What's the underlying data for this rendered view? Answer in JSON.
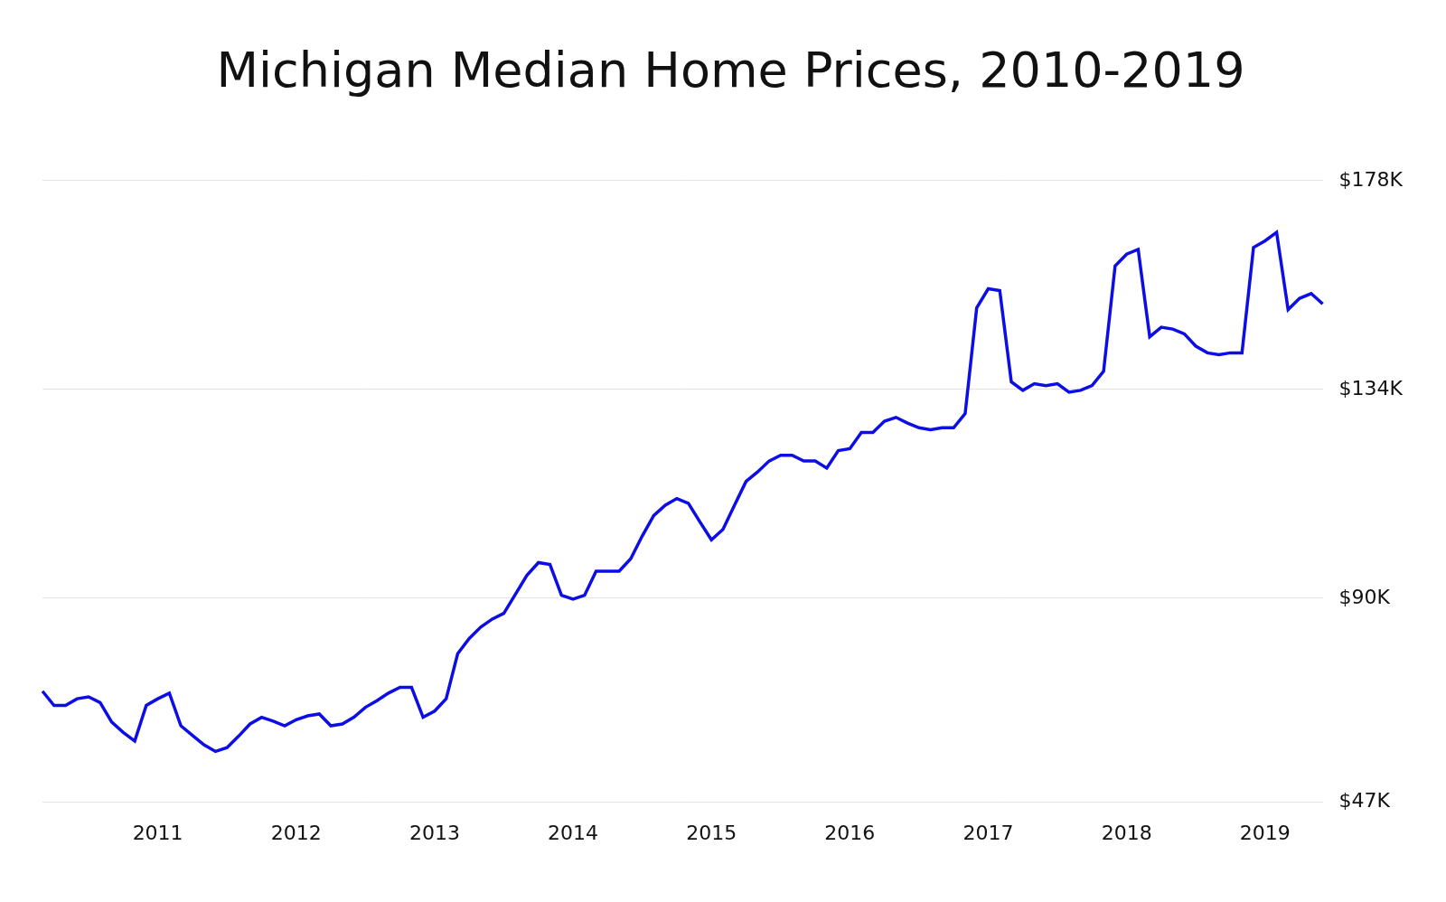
{
  "chart_data": {
    "type": "line",
    "title": "Michigan Median Home Prices, 2010-2019",
    "categories": [
      null,
      null,
      null,
      null,
      null,
      null,
      null,
      null,
      null,
      null,
      "2011",
      null,
      null,
      null,
      null,
      null,
      null,
      null,
      null,
      null,
      null,
      null,
      "2012",
      null,
      null,
      null,
      null,
      null,
      null,
      null,
      null,
      null,
      null,
      null,
      "2013",
      null,
      null,
      null,
      null,
      null,
      null,
      null,
      null,
      null,
      null,
      null,
      "2014",
      null,
      null,
      null,
      null,
      null,
      null,
      null,
      null,
      null,
      null,
      null,
      "2015",
      null,
      null,
      null,
      null,
      null,
      null,
      null,
      null,
      null,
      null,
      null,
      "2016",
      null,
      null,
      null,
      null,
      null,
      null,
      null,
      null,
      null,
      null,
      null,
      "2017",
      null,
      null,
      null,
      null,
      null,
      null,
      null,
      null,
      null,
      null,
      null,
      "2018",
      null,
      null,
      null,
      null,
      null,
      null,
      null,
      null,
      null,
      null,
      null,
      "2019",
      null,
      null,
      null,
      null,
      null
    ],
    "values": [
      70.4,
      67.4,
      67.4,
      68.8,
      69.2,
      68.0,
      63.9,
      61.7,
      59.9,
      67.4,
      68.8,
      70.0,
      63.1,
      61.1,
      59.1,
      57.7,
      58.5,
      60.9,
      63.5,
      64.9,
      64.1,
      63.1,
      64.4,
      65.2,
      65.6,
      63.1,
      63.5,
      64.9,
      67.0,
      68.4,
      70.0,
      71.2,
      71.2,
      64.9,
      66.2,
      68.8,
      78.3,
      81.5,
      83.9,
      85.6,
      86.8,
      90.8,
      94.8,
      97.5,
      97.1,
      90.6,
      89.8,
      90.6,
      95.7,
      95.7,
      95.7,
      98.3,
      103.1,
      107.4,
      109.6,
      111.0,
      110.0,
      106.1,
      102.3,
      104.5,
      109.6,
      114.6,
      116.6,
      118.9,
      120.1,
      120.1,
      118.9,
      118.9,
      117.4,
      121.1,
      121.5,
      124.9,
      124.9,
      127.3,
      128.1,
      126.9,
      125.9,
      125.5,
      125.9,
      125.9,
      128.9,
      151.2,
      155.2,
      154.8,
      135.6,
      133.8,
      135.2,
      134.8,
      135.2,
      133.4,
      133.8,
      134.8,
      137.8,
      160.0,
      162.5,
      163.5,
      145.1,
      147.1,
      146.7,
      145.7,
      143.1,
      141.7,
      141.3,
      141.7,
      141.7,
      163.9,
      165.3,
      167.1,
      150.8,
      153.2,
      154.2,
      152.0
    ],
    "color": "#0d0de6",
    "ylim": [
      47,
      178
    ],
    "yticks": [
      {
        "value": 47,
        "label": "$47K"
      },
      {
        "value": 90,
        "label": "$90K"
      },
      {
        "value": 134,
        "label": "$134K"
      },
      {
        "value": 178,
        "label": "$178K"
      }
    ],
    "grid": true
  }
}
